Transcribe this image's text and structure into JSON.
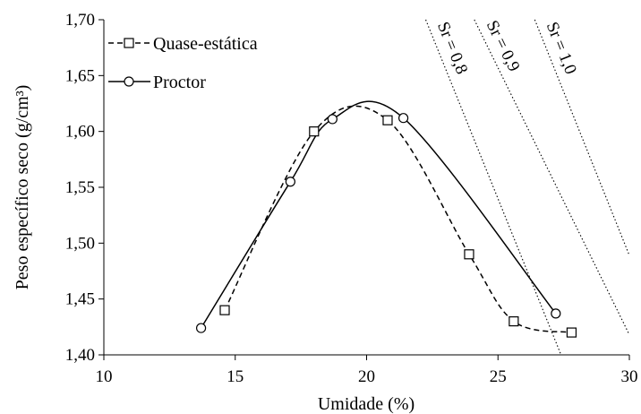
{
  "chart_data": {
    "type": "scatter",
    "title": "",
    "xlabel": "Umidade (%)",
    "ylabel": "Peso específico seco (g/cm³)",
    "xlim": [
      10,
      30
    ],
    "ylim": [
      1.4,
      1.7
    ],
    "x_ticks": [
      "10",
      "15",
      "20",
      "25",
      "30"
    ],
    "y_ticks": [
      "1,40",
      "1,45",
      "1,50",
      "1,55",
      "1,60",
      "1,65",
      "1,70"
    ],
    "grid": false,
    "legend_position": "top-left",
    "series": [
      {
        "name": "Quase-estática",
        "marker": "square",
        "line_style": "dashed",
        "smooth": true,
        "x": [
          14.6,
          18.0,
          20.8,
          23.9,
          25.6,
          27.8
        ],
        "y": [
          1.44,
          1.6,
          1.61,
          1.49,
          1.43,
          1.42
        ]
      },
      {
        "name": "Proctor",
        "marker": "circle",
        "line_style": "solid",
        "smooth": true,
        "x": [
          13.7,
          17.1,
          18.7,
          21.4,
          27.2
        ],
        "y": [
          1.424,
          1.555,
          1.611,
          1.612,
          1.437
        ]
      }
    ],
    "saturation_curves": [
      {
        "label": "Sr = 0,8",
        "x": [
          22.25,
          27.4
        ],
        "y": [
          1.7,
          1.4
        ]
      },
      {
        "label": "Sr = 0,9",
        "x": [
          24.1,
          30.0
        ],
        "y": [
          1.7,
          1.418
        ]
      },
      {
        "label": "Sr = 1,0",
        "x": [
          26.4,
          30.0
        ],
        "y": [
          1.7,
          1.489
        ]
      }
    ]
  }
}
